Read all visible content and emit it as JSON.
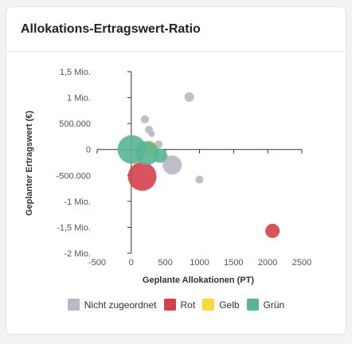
{
  "card": {
    "title": "Allokations-Ertragswert-Ratio"
  },
  "chart_data": {
    "type": "bubble",
    "xlabel": "Geplante Allokationen (PT)",
    "ylabel": "Geplanter Ertragswert (€)",
    "xlim": [
      -500,
      2500
    ],
    "ylim": [
      -2000000,
      1500000
    ],
    "xticks": [
      -500,
      0,
      500,
      1000,
      1500,
      2000,
      2500
    ],
    "xtick_labels": [
      "-500",
      "0",
      "500",
      "1000",
      "1500",
      "2000",
      "2500"
    ],
    "yticks": [
      1500000,
      1000000,
      500000,
      0,
      -500000,
      -1000000,
      -1500000,
      -2000000
    ],
    "ytick_labels": [
      "1,5 Mio.",
      "1 Mio.",
      "500.000",
      "0",
      "-500.000",
      "-1 Mio.",
      "-1,5 Mio.",
      "-2 Mio."
    ],
    "legend_position": "bottom",
    "series": [
      {
        "name": "Nicht zugeordnet",
        "color": "#b9b8c3",
        "points": [
          {
            "x": 850,
            "y": 1010000,
            "r": 6
          },
          {
            "x": 200,
            "y": 580000,
            "r": 5
          },
          {
            "x": 260,
            "y": 380000,
            "r": 5
          },
          {
            "x": 300,
            "y": 300000,
            "r": 4
          },
          {
            "x": 400,
            "y": 100000,
            "r": 5
          },
          {
            "x": 600,
            "y": -300000,
            "r": 12
          },
          {
            "x": 1000,
            "y": -580000,
            "r": 5
          },
          {
            "x": 500,
            "y": -170000,
            "r": 5
          }
        ]
      },
      {
        "name": "Rot",
        "color": "#d4414a",
        "points": [
          {
            "x": 160,
            "y": -520000,
            "r": 18
          },
          {
            "x": 2070,
            "y": -1570000,
            "r": 9
          }
        ]
      },
      {
        "name": "Gelb",
        "color": "#f6d93a",
        "points": [
          {
            "x": 270,
            "y": 30000,
            "r": 9
          }
        ]
      },
      {
        "name": "Grün",
        "color": "#5ab593",
        "points": [
          {
            "x": 10,
            "y": 0,
            "r": 18
          },
          {
            "x": 230,
            "y": -70000,
            "r": 15
          },
          {
            "x": 420,
            "y": -120000,
            "r": 9
          }
        ]
      }
    ]
  }
}
